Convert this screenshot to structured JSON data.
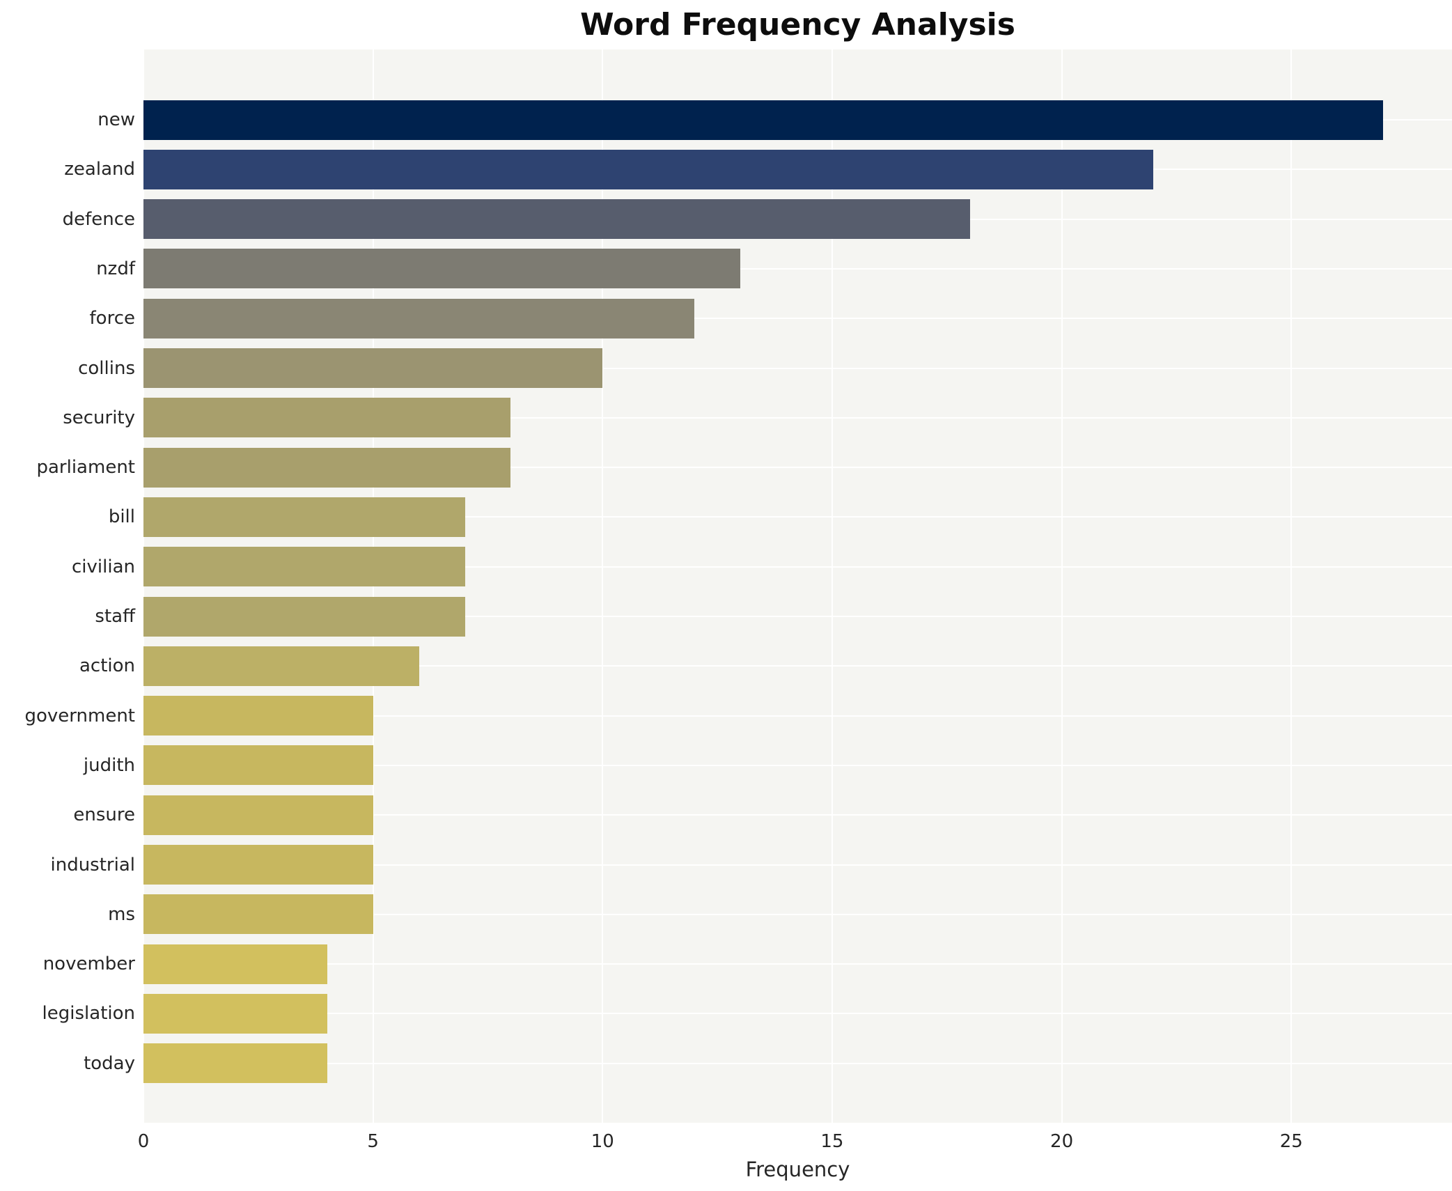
{
  "chart_data": {
    "type": "bar",
    "orientation": "horizontal",
    "title": "Word Frequency Analysis",
    "xlabel": "Frequency",
    "ylabel": "",
    "categories": [
      "new",
      "zealand",
      "defence",
      "nzdf",
      "force",
      "collins",
      "security",
      "parliament",
      "bill",
      "civilian",
      "staff",
      "action",
      "government",
      "judith",
      "ensure",
      "industrial",
      "ms",
      "november",
      "legislation",
      "today"
    ],
    "values": [
      27,
      22,
      18,
      13,
      12,
      10,
      8,
      8,
      7,
      7,
      7,
      6,
      5,
      5,
      5,
      5,
      5,
      4,
      4,
      4
    ],
    "bar_colors": [
      "#00224e",
      "#2e4371",
      "#575d6d",
      "#7d7b72",
      "#8a8674",
      "#9b9471",
      "#a89f6c",
      "#a89f6c",
      "#b0a76b",
      "#b0a76b",
      "#b0a76b",
      "#bcb066",
      "#c7b75f",
      "#c7b75f",
      "#c7b75f",
      "#c7b75f",
      "#c7b75f",
      "#d2c05e",
      "#d2c05e",
      "#d2c05e"
    ],
    "xticks": [
      0,
      5,
      10,
      15,
      20,
      25
    ],
    "xlim": [
      0,
      28.5
    ],
    "grid": true,
    "legend_position": "none",
    "plot_background": "#f5f5f2",
    "grid_color": "#ffffff",
    "text_color": "#262626",
    "title_color": "#0d0d0d"
  }
}
